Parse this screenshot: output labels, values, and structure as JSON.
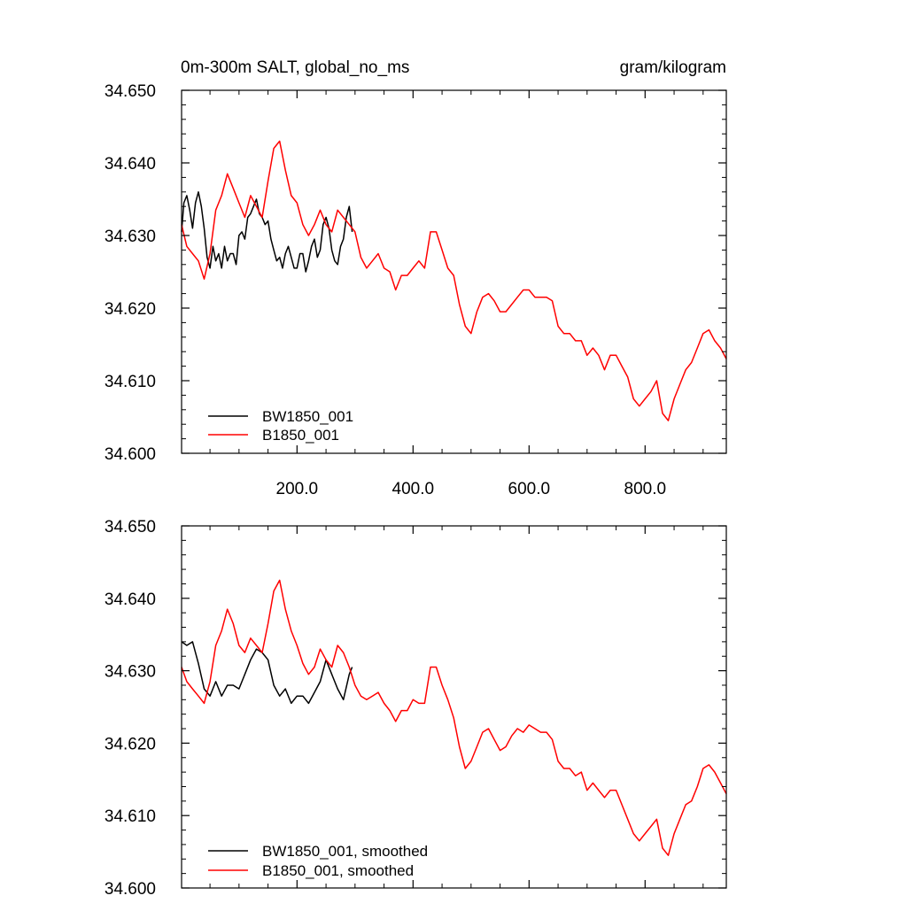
{
  "chart_data": [
    {
      "type": "line",
      "title": "0m-300m SALT, global_no_ms",
      "units": "gram/kilogram",
      "xlabel": "",
      "ylabel": "",
      "xlim": [
        1,
        940
      ],
      "ylim": [
        34.6,
        34.65
      ],
      "x_ticks": [
        200,
        400,
        600,
        800
      ],
      "x_tick_labels": [
        "200.0",
        "400.0",
        "600.0",
        "800.0"
      ],
      "y_ticks": [
        34.6,
        34.61,
        34.62,
        34.63,
        34.64,
        34.65
      ],
      "y_tick_labels": [
        "34.600",
        "34.610",
        "34.620",
        "34.630",
        "34.640",
        "34.650"
      ],
      "legend_position": "bottom-left",
      "series": [
        {
          "name": "BW1850_001",
          "color": "#000000",
          "x": [
            1,
            5,
            10,
            15,
            20,
            25,
            30,
            35,
            40,
            45,
            50,
            55,
            60,
            65,
            70,
            75,
            80,
            85,
            90,
            95,
            100,
            105,
            110,
            115,
            120,
            125,
            130,
            135,
            140,
            145,
            150,
            155,
            160,
            165,
            170,
            175,
            180,
            185,
            190,
            195,
            200,
            205,
            210,
            215,
            220,
            225,
            230,
            235,
            240,
            245,
            250,
            255,
            260,
            265,
            270,
            275,
            280,
            285,
            290,
            295
          ],
          "values": [
            34.6305,
            34.6345,
            34.6355,
            34.6335,
            34.631,
            34.6345,
            34.636,
            34.634,
            34.631,
            34.627,
            34.6255,
            34.6285,
            34.6265,
            34.6275,
            34.6255,
            34.6285,
            34.6265,
            34.6275,
            34.6275,
            34.626,
            34.63,
            34.6305,
            34.6295,
            34.6325,
            34.633,
            34.634,
            34.635,
            34.633,
            34.6325,
            34.6315,
            34.632,
            34.6295,
            34.628,
            34.6265,
            34.627,
            34.6255,
            34.6275,
            34.6285,
            34.627,
            34.6255,
            34.6255,
            34.6275,
            34.6275,
            34.625,
            34.6265,
            34.6285,
            34.6295,
            34.627,
            34.628,
            34.6315,
            34.6325,
            34.631,
            34.628,
            34.6265,
            34.626,
            34.6285,
            34.6295,
            34.6325,
            34.634,
            34.6305
          ]
        },
        {
          "name": "B1850_001",
          "color": "#ff0000",
          "x": [
            1,
            10,
            20,
            30,
            40,
            50,
            60,
            70,
            80,
            90,
            100,
            110,
            120,
            130,
            140,
            150,
            160,
            170,
            180,
            190,
            200,
            210,
            220,
            230,
            240,
            250,
            260,
            270,
            280,
            290,
            300,
            310,
            320,
            330,
            340,
            350,
            360,
            370,
            380,
            390,
            400,
            410,
            420,
            430,
            440,
            450,
            460,
            470,
            480,
            490,
            500,
            510,
            520,
            530,
            540,
            550,
            560,
            570,
            580,
            590,
            600,
            610,
            620,
            630,
            640,
            650,
            660,
            670,
            680,
            690,
            700,
            710,
            720,
            730,
            740,
            750,
            760,
            770,
            780,
            790,
            800,
            810,
            820,
            830,
            840,
            850,
            860,
            870,
            880,
            890,
            900,
            910,
            920,
            930,
            940
          ],
          "values": [
            34.6315,
            34.6285,
            34.6275,
            34.6265,
            34.624,
            34.6275,
            34.6335,
            34.6355,
            34.6385,
            34.6365,
            34.6345,
            34.6325,
            34.6355,
            34.634,
            34.6325,
            34.6375,
            34.642,
            34.643,
            34.639,
            34.6355,
            34.6345,
            34.6315,
            34.63,
            34.6315,
            34.6335,
            34.6315,
            34.6305,
            34.6335,
            34.6325,
            34.6315,
            34.6305,
            34.627,
            34.6255,
            34.6265,
            34.6275,
            34.6255,
            34.625,
            34.6225,
            34.6245,
            34.6245,
            34.6255,
            34.6265,
            34.6255,
            34.6305,
            34.6305,
            34.628,
            34.6255,
            34.6245,
            34.6205,
            34.6175,
            34.6165,
            34.6195,
            34.6215,
            34.622,
            34.621,
            34.6195,
            34.6195,
            34.6205,
            34.6215,
            34.6225,
            34.6225,
            34.6215,
            34.6215,
            34.6215,
            34.621,
            34.6175,
            34.6165,
            34.6165,
            34.6155,
            34.6155,
            34.6135,
            34.6145,
            34.6135,
            34.6115,
            34.6135,
            34.6135,
            34.612,
            34.6105,
            34.6075,
            34.6065,
            34.6075,
            34.6085,
            34.61,
            34.6055,
            34.6045,
            34.6075,
            34.6095,
            34.6115,
            34.6125,
            34.6145,
            34.6165,
            34.617,
            34.6155,
            34.6145,
            34.613
          ]
        }
      ]
    },
    {
      "type": "line",
      "title": "",
      "xlabel": "",
      "ylabel": "",
      "xlim": [
        1,
        940
      ],
      "ylim": [
        34.6,
        34.65
      ],
      "y_ticks": [
        34.6,
        34.61,
        34.62,
        34.63,
        34.64,
        34.65
      ],
      "y_tick_labels": [
        "34.600",
        "34.610",
        "34.620",
        "34.630",
        "34.640",
        "34.650"
      ],
      "legend_position": "bottom-left",
      "series": [
        {
          "name": "BW1850_001, smoothed",
          "color": "#000000",
          "x": [
            1,
            10,
            20,
            30,
            40,
            50,
            60,
            70,
            80,
            90,
            100,
            110,
            120,
            130,
            140,
            150,
            160,
            170,
            180,
            190,
            200,
            210,
            220,
            230,
            240,
            250,
            260,
            270,
            280,
            290,
            295
          ],
          "values": [
            34.634,
            34.6335,
            34.634,
            34.631,
            34.6275,
            34.6265,
            34.6285,
            34.6265,
            34.628,
            34.628,
            34.6275,
            34.6295,
            34.6315,
            34.633,
            34.6325,
            34.6315,
            34.628,
            34.6265,
            34.6275,
            34.6255,
            34.6265,
            34.6265,
            34.6255,
            34.627,
            34.6285,
            34.6315,
            34.6295,
            34.6275,
            34.626,
            34.6295,
            34.6305
          ]
        },
        {
          "name": "B1850_001, smoothed",
          "color": "#ff0000",
          "x": [
            1,
            10,
            20,
            30,
            40,
            50,
            60,
            70,
            80,
            90,
            100,
            110,
            120,
            130,
            140,
            150,
            160,
            170,
            180,
            190,
            200,
            210,
            220,
            230,
            240,
            250,
            260,
            270,
            280,
            290,
            300,
            310,
            320,
            330,
            340,
            350,
            360,
            370,
            380,
            390,
            400,
            410,
            420,
            430,
            440,
            450,
            460,
            470,
            480,
            490,
            500,
            510,
            520,
            530,
            540,
            550,
            560,
            570,
            580,
            590,
            600,
            610,
            620,
            630,
            640,
            650,
            660,
            670,
            680,
            690,
            700,
            710,
            720,
            730,
            740,
            750,
            760,
            770,
            780,
            790,
            800,
            810,
            820,
            830,
            840,
            850,
            860,
            870,
            880,
            890,
            900,
            910,
            920,
            930,
            940
          ],
          "values": [
            34.6305,
            34.6285,
            34.6275,
            34.6265,
            34.6255,
            34.6285,
            34.6335,
            34.6355,
            34.6385,
            34.6365,
            34.6335,
            34.6325,
            34.6345,
            34.6335,
            34.6325,
            34.6365,
            34.641,
            34.6425,
            34.6385,
            34.6355,
            34.6335,
            34.631,
            34.6295,
            34.6305,
            34.633,
            34.6315,
            34.6305,
            34.6335,
            34.6325,
            34.6305,
            34.628,
            34.6265,
            34.626,
            34.6265,
            34.627,
            34.6255,
            34.6245,
            34.623,
            34.6245,
            34.6245,
            34.626,
            34.6255,
            34.6255,
            34.6305,
            34.6305,
            34.628,
            34.626,
            34.6235,
            34.6195,
            34.6165,
            34.6175,
            34.6195,
            34.6215,
            34.622,
            34.6205,
            34.619,
            34.6195,
            34.621,
            34.622,
            34.6215,
            34.6225,
            34.622,
            34.6215,
            34.6215,
            34.6205,
            34.6175,
            34.6165,
            34.6165,
            34.6155,
            34.616,
            34.6135,
            34.6145,
            34.6135,
            34.6125,
            34.6135,
            34.6135,
            34.6115,
            34.6095,
            34.6075,
            34.6065,
            34.6075,
            34.6085,
            34.6095,
            34.6055,
            34.6045,
            34.6075,
            34.6095,
            34.6115,
            34.612,
            34.614,
            34.6165,
            34.617,
            34.616,
            34.6145,
            34.613
          ]
        }
      ]
    }
  ]
}
